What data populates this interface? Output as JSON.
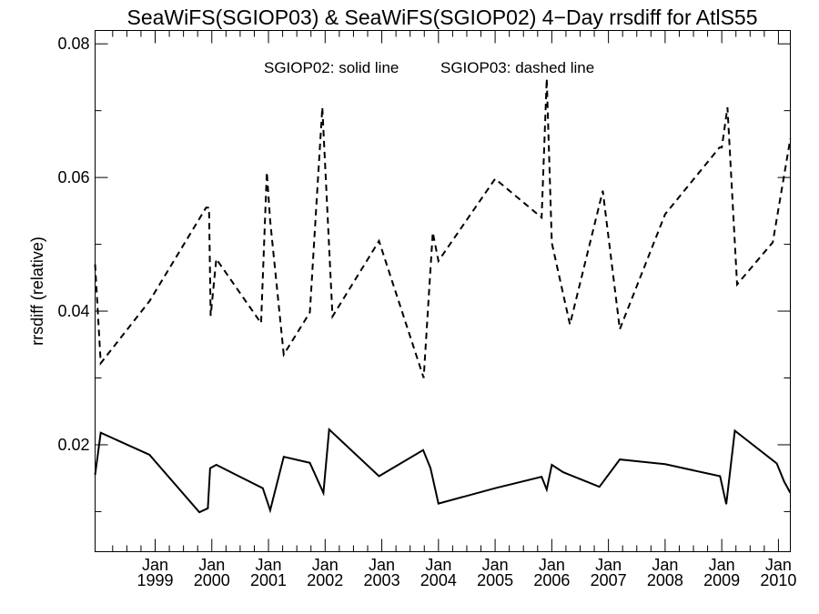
{
  "chart_data": {
    "type": "line",
    "title": "SeaWiFS(SGIOP03) & SeaWiFS(SGIOP02) 4−Day rrsdiff for AtlS55",
    "ylabel": "rrsdiff (relative)",
    "xlabel": "",
    "annotation_solid": "SGIOP02: solid line",
    "annotation_dashed": "SGIOP03: dashed line",
    "xlim": [
      1997.94,
      2010.21
    ],
    "ylim": [
      0.004,
      0.082
    ],
    "x_ticks": [
      {
        "year": 1999,
        "month": "Jan",
        "label": "1999"
      },
      {
        "year": 2000,
        "month": "Jan",
        "label": "2000"
      },
      {
        "year": 2001,
        "month": "Jan",
        "label": "2001"
      },
      {
        "year": 2002,
        "month": "Jan",
        "label": "2002"
      },
      {
        "year": 2003,
        "month": "Jan",
        "label": "2003"
      },
      {
        "year": 2004,
        "month": "Jan",
        "label": "2004"
      },
      {
        "year": 2005,
        "month": "Jan",
        "label": "2005"
      },
      {
        "year": 2006,
        "month": "Jan",
        "label": "2006"
      },
      {
        "year": 2007,
        "month": "Jan",
        "label": "2007"
      },
      {
        "year": 2008,
        "month": "Jan",
        "label": "2008"
      },
      {
        "year": 2009,
        "month": "Jan",
        "label": "2009"
      },
      {
        "year": 2010,
        "month": "Jan",
        "label": "2010"
      }
    ],
    "y_ticks": [
      {
        "value": 0.02,
        "label": "0.02"
      },
      {
        "value": 0.04,
        "label": "0.04"
      },
      {
        "value": 0.06,
        "label": "0.06"
      },
      {
        "value": 0.08,
        "label": "0.08"
      }
    ],
    "y_minor_ticks": [
      0.01,
      0.03,
      0.05,
      0.07
    ],
    "series": [
      {
        "name": "SGIOP02",
        "style": "solid",
        "color": "#000000",
        "x": [
          1997.94,
          1998.04,
          1998.9,
          1999.78,
          1999.93,
          1999.97,
          2000.08,
          2000.9,
          2001.03,
          2001.27,
          2001.73,
          2001.97,
          2002.07,
          2002.95,
          2003.73,
          2003.86,
          2004.0,
          2005.0,
          2005.82,
          2005.91,
          2006.0,
          2006.2,
          2006.84,
          2007.2,
          2008.0,
          2008.97,
          2009.08,
          2009.23,
          2009.97,
          2010.1,
          2010.21
        ],
        "y": [
          0.0155,
          0.0218,
          0.0185,
          0.0099,
          0.0105,
          0.0165,
          0.017,
          0.0135,
          0.0102,
          0.0182,
          0.0173,
          0.0128,
          0.0223,
          0.0153,
          0.0192,
          0.0165,
          0.0112,
          0.0135,
          0.0152,
          0.0133,
          0.017,
          0.0159,
          0.0137,
          0.0178,
          0.0171,
          0.0153,
          0.0111,
          0.0221,
          0.0172,
          0.0145,
          0.0128
        ]
      },
      {
        "name": "SGIOP03",
        "style": "dashed",
        "color": "#000000",
        "x": [
          1997.94,
          1998.04,
          1998.9,
          1999.9,
          1999.95,
          1999.98,
          2000.08,
          2000.87,
          2000.97,
          2001.03,
          2001.27,
          2001.73,
          2001.95,
          2002.13,
          2002.95,
          2003.74,
          2003.84,
          2003.9,
          2004.0,
          2005.0,
          2005.82,
          2005.91,
          2006.0,
          2006.32,
          2006.9,
          2007.2,
          2008.0,
          2008.96,
          2009.0,
          2009.1,
          2009.27,
          2009.9,
          2010.21
        ],
        "y": [
          0.047,
          0.0322,
          0.0415,
          0.0555,
          0.0555,
          0.0393,
          0.0478,
          0.0382,
          0.0608,
          0.0535,
          0.0335,
          0.0398,
          0.0705,
          0.0392,
          0.0505,
          0.03,
          0.0438,
          0.0518,
          0.0475,
          0.0598,
          0.054,
          0.0748,
          0.0502,
          0.038,
          0.058,
          0.0373,
          0.0545,
          0.0645,
          0.0645,
          0.0705,
          0.044,
          0.0503,
          0.0658
        ]
      }
    ]
  }
}
